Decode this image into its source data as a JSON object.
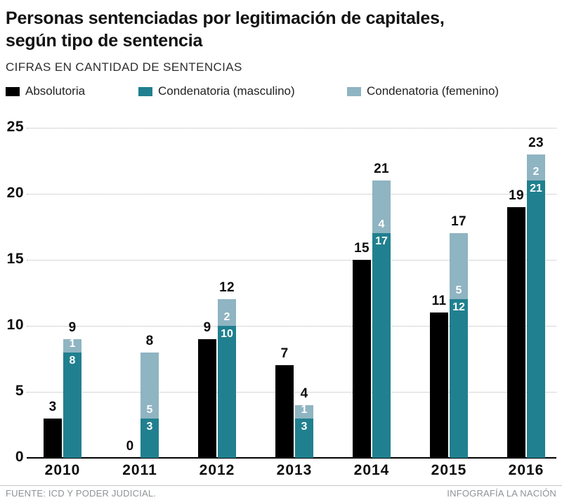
{
  "title_lines": [
    "Personas sentenciadas por legitimación de capitales,",
    "según tipo de sentencia"
  ],
  "subtitle": "CIFRAS EN CANTIDAD DE SENTENCIAS",
  "legend": [
    {
      "label": "Absolutoria",
      "color": "#000000"
    },
    {
      "label": "Condenatoria (masculino)",
      "color": "#20808f"
    },
    {
      "label": "Condenatoria (femenino)",
      "color": "#8fb4c2"
    }
  ],
  "colors": {
    "absolutoria": "#000000",
    "condenatoria_masculino": "#20808f",
    "condenatoria_femenino": "#8fb4c2",
    "gridline": "#b0b0b0",
    "axis": "#000000",
    "footer_text": "#8f9396"
  },
  "footer": {
    "source": "FUENTE: ICD Y PODER JUDICIAL.",
    "credit": "INFOGRAFÍA LA NACIÓN"
  },
  "chart_data": {
    "type": "bar",
    "subtype": "grouped-with-stacked-column",
    "title": "Personas sentenciadas por legitimación de capitales, según tipo de sentencia",
    "units_note": "CIFRAS EN CANTIDAD DE SENTENCIAS",
    "categories": [
      "2010",
      "2011",
      "2012",
      "2013",
      "2014",
      "2015",
      "2016"
    ],
    "series": [
      {
        "name": "Absolutoria",
        "color": "#000000",
        "stack": "none",
        "values": [
          3,
          0,
          9,
          7,
          15,
          11,
          19
        ]
      },
      {
        "name": "Condenatoria (masculino)",
        "color": "#20808f",
        "stack": "condenatoria",
        "values": [
          8,
          3,
          10,
          3,
          17,
          12,
          21
        ]
      },
      {
        "name": "Condenatoria (femenino)",
        "color": "#8fb4c2",
        "stack": "condenatoria",
        "values": [
          1,
          5,
          2,
          1,
          4,
          5,
          2
        ]
      }
    ],
    "stacked_totals": [
      9,
      8,
      12,
      4,
      21,
      17,
      23
    ],
    "xlabel": "",
    "ylabel": "",
    "ylim": [
      0,
      25
    ],
    "yticks": [
      0,
      5,
      10,
      15,
      20,
      25
    ],
    "grid": "horizontal dotted",
    "legend_position": "top"
  }
}
